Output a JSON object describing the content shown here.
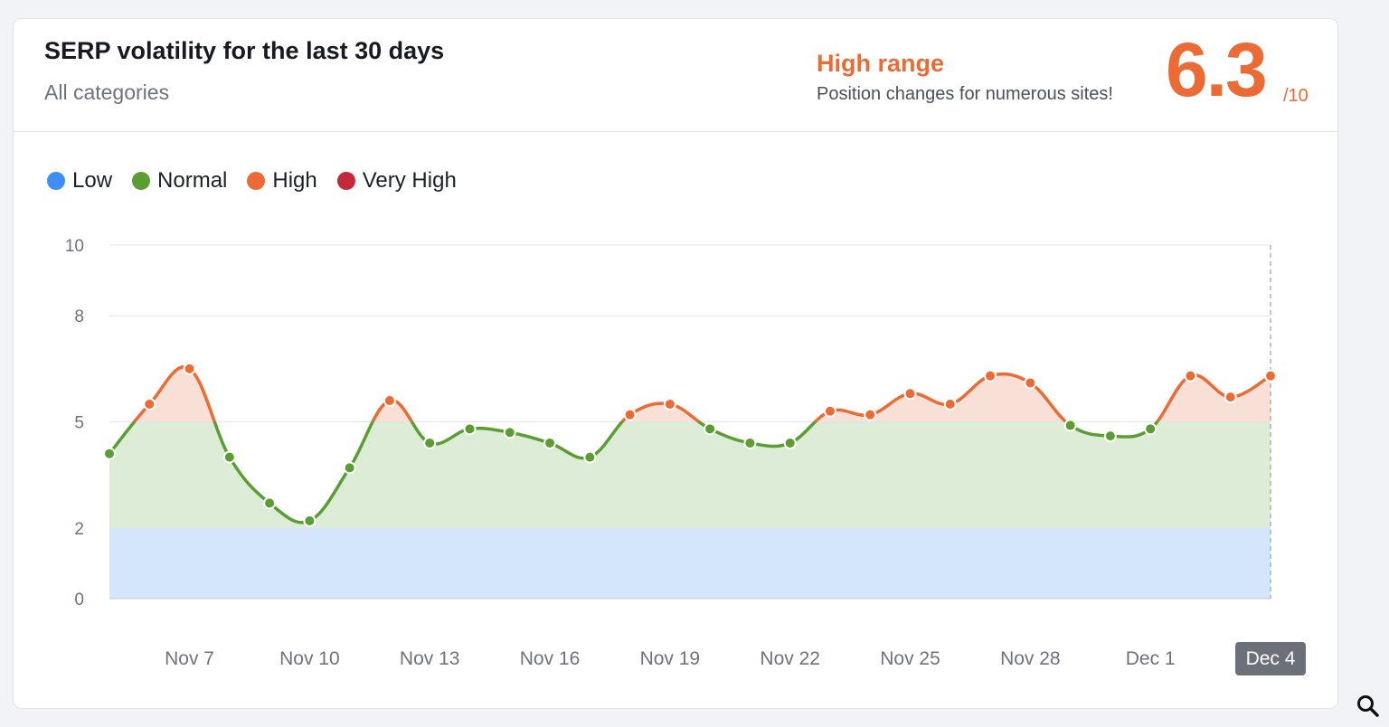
{
  "header": {
    "title": "SERP volatility for the last 30 days",
    "subtitle": "All categories",
    "range_label": "High range",
    "range_description": "Position changes for numerous sites!",
    "score": "6.3",
    "score_max": "/10"
  },
  "legend": [
    {
      "label": "Low",
      "color": "#3d8ff5"
    },
    {
      "label": "Normal",
      "color": "#5a9e32"
    },
    {
      "label": "High",
      "color": "#ec6a33"
    },
    {
      "label": "Very High",
      "color": "#c5283b"
    }
  ],
  "colors": {
    "low_band": "#d3e6fb",
    "normal_band": "#dcecd6",
    "high_band": "#f9e0d6",
    "normal_line": "#5a9e32",
    "high_line": "#ec6a33",
    "grid": "#e2e4e8",
    "tick_text": "#6c7280",
    "selected_label_bg": "#6b7079"
  },
  "chart_data": {
    "type": "area",
    "title": "SERP volatility for the last 30 days",
    "xlabel": "",
    "ylabel": "",
    "ylim": [
      0,
      10
    ],
    "y_ticks": [
      0,
      2,
      5,
      8,
      10
    ],
    "bands": [
      {
        "name": "Low",
        "from": 0,
        "to": 2
      },
      {
        "name": "Normal",
        "from": 2,
        "to": 5
      },
      {
        "name": "High",
        "from": 5,
        "to": 8
      },
      {
        "name": "Very High",
        "from": 8,
        "to": 10
      }
    ],
    "x": [
      "Nov 5",
      "Nov 6",
      "Nov 7",
      "Nov 8",
      "Nov 9",
      "Nov 10",
      "Nov 11",
      "Nov 12",
      "Nov 13",
      "Nov 14",
      "Nov 15",
      "Nov 16",
      "Nov 17",
      "Nov 18",
      "Nov 19",
      "Nov 20",
      "Nov 21",
      "Nov 22",
      "Nov 23",
      "Nov 24",
      "Nov 25",
      "Nov 26",
      "Nov 27",
      "Nov 28",
      "Nov 29",
      "Nov 30",
      "Dec 1",
      "Dec 2",
      "Dec 3",
      "Dec 4"
    ],
    "x_tick_labels": [
      "Nov 7",
      "Nov 10",
      "Nov 13",
      "Nov 16",
      "Nov 19",
      "Nov 22",
      "Nov 25",
      "Nov 28",
      "Dec 1",
      "Dec 4"
    ],
    "selected": "Dec 4",
    "series": [
      {
        "values": [
          4.1,
          5.5,
          6.5,
          4.0,
          2.7,
          2.2,
          3.7,
          5.6,
          4.4,
          4.8,
          4.7,
          4.4,
          4.0,
          5.2,
          5.5,
          4.8,
          4.4,
          4.4,
          5.3,
          5.2,
          5.8,
          5.5,
          6.3,
          6.1,
          4.9,
          4.6,
          4.8,
          6.3,
          5.7,
          6.3
        ]
      }
    ],
    "grid": true,
    "legend_position": "top-left"
  }
}
